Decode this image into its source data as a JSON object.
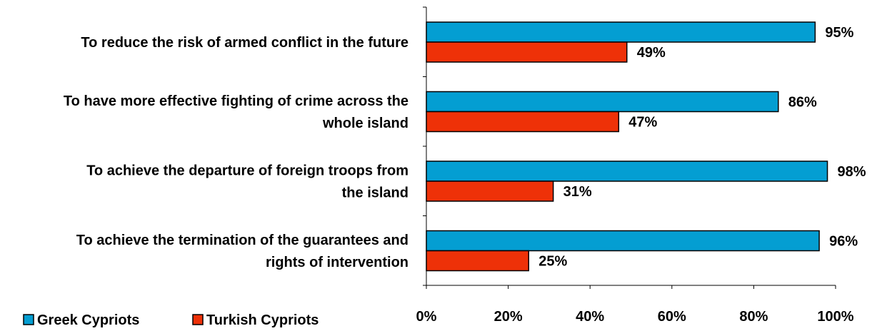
{
  "chart_data": {
    "type": "bar",
    "orientation": "horizontal",
    "categories": [
      [
        "To reduce the risk of armed conflict in the future"
      ],
      [
        "To have more effective fighting of crime across the",
        "whole island"
      ],
      [
        "To achieve the departure of foreign troops from",
        "the island"
      ],
      [
        "To achieve the termination of the guarantees and",
        "rights of intervention"
      ]
    ],
    "series": [
      {
        "name": "Greek Cypriots",
        "color": "#049ed2",
        "values": [
          95,
          86,
          98,
          96
        ],
        "labels": [
          "95%",
          "86%",
          "98%",
          "96%"
        ]
      },
      {
        "name": "Turkish Cypriots",
        "color": "#ee3108",
        "values": [
          49,
          47,
          31,
          25
        ],
        "labels": [
          "49%",
          "47%",
          "31%",
          "25%"
        ]
      }
    ],
    "xlim": [
      0,
      100
    ],
    "x_ticks": [
      "0%",
      "20%",
      "40%",
      "60%",
      "80%",
      "100%"
    ],
    "grid": false,
    "legend_position": "bottom-left"
  }
}
